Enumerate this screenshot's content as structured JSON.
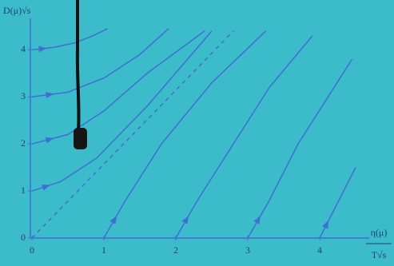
{
  "chart_data": {
    "type": "flow",
    "y_label": "D(μ)√s",
    "x_label_top": "η(μ)",
    "x_label_bottom": "T√s",
    "xlim": [
      0,
      4.9
    ],
    "ylim": [
      0,
      4.6
    ],
    "xticks": [
      0,
      1,
      2,
      3,
      4
    ],
    "yticks": [
      0,
      1,
      2,
      3,
      4
    ],
    "color": "#3f6fd0",
    "lines": [
      {
        "x": [
          0,
          0.3,
          0.6,
          0.85,
          1.05
        ],
        "y": [
          4.0,
          4.05,
          4.15,
          4.3,
          4.45
        ]
      },
      {
        "x": [
          0,
          0.5,
          1.0,
          1.5,
          1.9
        ],
        "y": [
          3.0,
          3.1,
          3.4,
          3.9,
          4.45
        ]
      },
      {
        "x": [
          0,
          0.5,
          1.0,
          1.6,
          2.4
        ],
        "y": [
          2.0,
          2.2,
          2.7,
          3.5,
          4.4
        ]
      },
      {
        "x": [
          0,
          0.4,
          0.9,
          1.6,
          2.5
        ],
        "y": [
          1.0,
          1.2,
          1.7,
          2.8,
          4.4
        ]
      },
      {
        "x": [
          1.0,
          1.3,
          1.8,
          2.5,
          3.25
        ],
        "y": [
          0,
          0.8,
          2.0,
          3.3,
          4.4
        ]
      },
      {
        "x": [
          2.0,
          2.3,
          2.8,
          3.3,
          3.9
        ],
        "y": [
          0,
          0.8,
          2.0,
          3.2,
          4.3
        ]
      },
      {
        "x": [
          3.0,
          3.3,
          3.7,
          4.45
        ],
        "y": [
          0,
          0.8,
          2.0,
          3.8
        ]
      },
      {
        "x": [
          4.0,
          4.2,
          4.5
        ],
        "y": [
          0,
          0.6,
          1.5
        ]
      }
    ],
    "dashed_line": {
      "x": [
        0,
        2.8
      ],
      "y": [
        0,
        4.4
      ]
    }
  }
}
